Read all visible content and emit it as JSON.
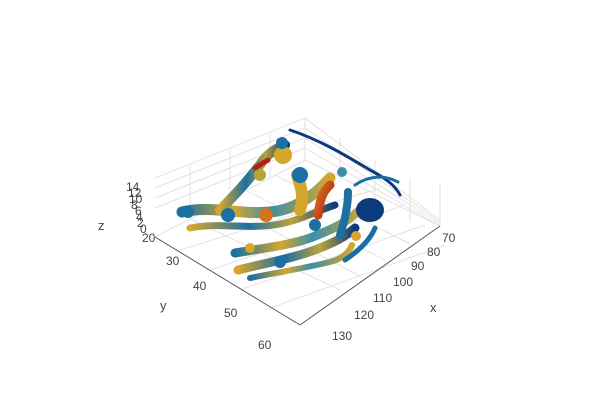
{
  "chart_data": {
    "type": "3d-surface-tubes",
    "title": "",
    "axes": {
      "x": {
        "label": "x",
        "ticks": [
          "70",
          "80",
          "90",
          "100",
          "110",
          "120",
          "130"
        ]
      },
      "y": {
        "label": "y",
        "ticks": [
          "20",
          "30",
          "40",
          "50",
          "60"
        ]
      },
      "z": {
        "label": "z",
        "ticks": [
          "0",
          "2",
          "4",
          "6",
          "8",
          "10",
          "12",
          "14"
        ]
      }
    },
    "colorscale": [
      "#0a3b7c",
      "#1b6fa3",
      "#3d8fa8",
      "#b9a43a",
      "#d4a72c",
      "#d6741d",
      "#b61f18"
    ],
    "grid": true,
    "legend": "none"
  }
}
